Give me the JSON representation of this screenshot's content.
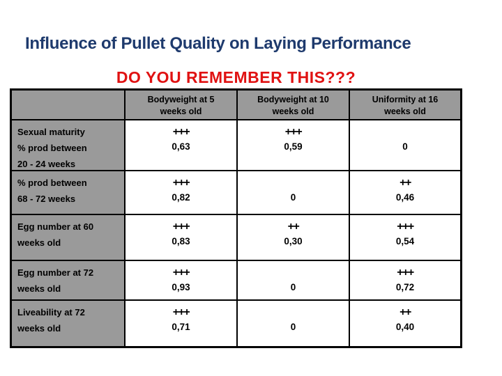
{
  "slide": {
    "title": "Influence of Pullet Quality on Laying Performance",
    "subtitle": "DO YOU REMEMBER THIS???",
    "colors": {
      "title_text": "#1e3a6d",
      "subtitle_text": "#e01212",
      "header_bg": "#9a9a9a",
      "border": "#000000",
      "value_text": "#000000"
    }
  },
  "table": {
    "corner": "",
    "column_headers": [
      "Bodyweight at 5\nweeks old",
      "Bodyweight at 10\nweeks old",
      "Uniformity at 16\nweeks old"
    ],
    "rows": [
      {
        "label": "Sexual maturity\n% prod between\n20 - 24 weeks",
        "cells": [
          {
            "symbol": "+++",
            "value": "0,63"
          },
          {
            "symbol": "+++",
            "value": "0,59"
          },
          {
            "symbol": "",
            "value": "0"
          }
        ]
      },
      {
        "label": "% prod between\n68 - 72 weeks",
        "cells": [
          {
            "symbol": "+++",
            "value": "0,82"
          },
          {
            "symbol": "",
            "value": "0"
          },
          {
            "symbol": "++",
            "value": "0,46"
          }
        ]
      },
      {
        "label": "Egg number at 60\nweeks old",
        "cells": [
          {
            "symbol": "+++",
            "value": "0,83"
          },
          {
            "symbol": "++",
            "value": "0,30"
          },
          {
            "symbol": "+++",
            "value": "0,54"
          }
        ]
      },
      {
        "label": "Egg number at 72\nweeks old",
        "cells": [
          {
            "symbol": "+++",
            "value": "0,93"
          },
          {
            "symbol": "",
            "value": "0"
          },
          {
            "symbol": "+++",
            "value": "0,72"
          }
        ]
      },
      {
        "label": "Liveability at 72\nweeks old",
        "cells": [
          {
            "symbol": "+++",
            "value": "0,71"
          },
          {
            "symbol": "",
            "value": "0"
          },
          {
            "symbol": "++",
            "value": "0,40"
          }
        ]
      }
    ]
  }
}
